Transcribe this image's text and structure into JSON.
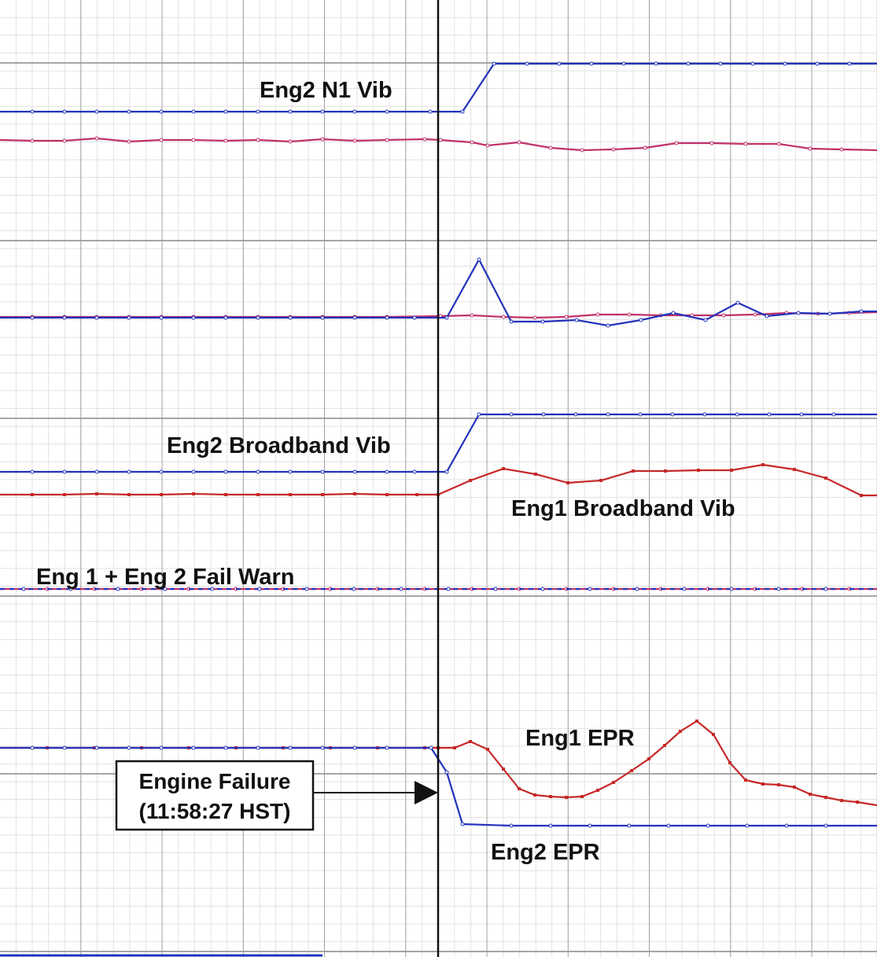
{
  "labels": [
    "Eng2 N1 Vib",
    "Eng2 Broadband Vib",
    "Eng1 Broadband Vib",
    "Eng 1 + Eng 2 Fail Warn",
    "Eng1 EPR",
    "Eng2 EPR"
  ],
  "callout": {
    "line1": "Engine Failure",
    "line2": "(11:58:27 HST)"
  }
}
